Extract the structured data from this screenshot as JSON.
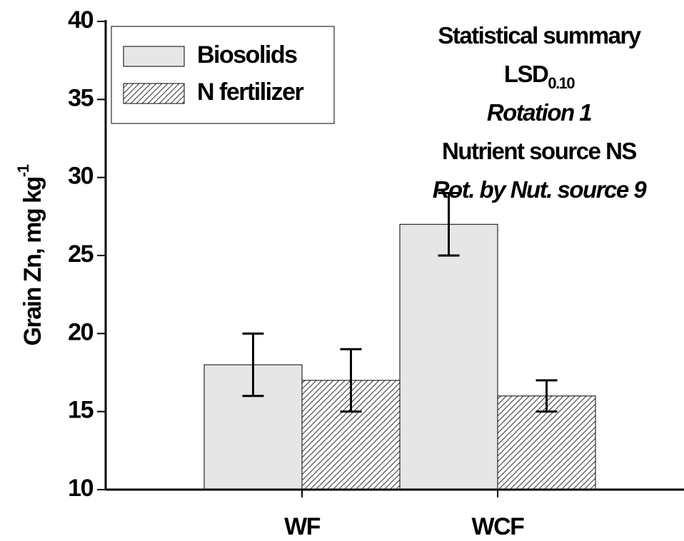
{
  "chart_data": {
    "type": "bar",
    "ylabel": "Grain Zn, mg kg",
    "ylabel_superscript": "-1",
    "categories": [
      "WF",
      "WCF"
    ],
    "series": [
      {
        "name": "Biosolids",
        "color": "#e6e6e6",
        "hatch": false,
        "values": [
          18,
          27
        ],
        "errors": [
          2,
          2
        ]
      },
      {
        "name": "N fertilizer",
        "color": "#ffffff",
        "hatch": true,
        "values": [
          17,
          16
        ],
        "errors": [
          2,
          1
        ]
      }
    ],
    "ylim": [
      10,
      40
    ],
    "yticks": [
      10,
      15,
      20,
      25,
      30,
      35,
      40
    ],
    "legend": "upper left",
    "annotations": [
      {
        "text": "Statistical summary",
        "italic": false
      },
      {
        "text": "LSD",
        "subscript": "0.10",
        "italic": false
      },
      {
        "text": "Rotation  1",
        "italic": true
      },
      {
        "text": "Nutrient source  NS",
        "italic": false
      },
      {
        "text": "Rot. by Nut. source  9",
        "italic": true
      }
    ]
  }
}
